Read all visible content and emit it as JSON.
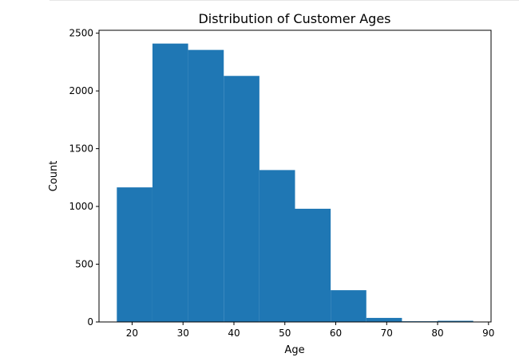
{
  "chart_data": {
    "type": "bar",
    "title": "Distribution of Customer Ages",
    "xlabel": "Age",
    "ylabel": "Count",
    "xlim": [
      13.5,
      90.5
    ],
    "ylim": [
      0,
      2525
    ],
    "xticks": [
      20,
      30,
      40,
      50,
      60,
      70,
      80,
      90
    ],
    "yticks": [
      0,
      500,
      1000,
      1500,
      2000,
      2500
    ],
    "bins": [
      {
        "start": 17.0,
        "end": 24.0,
        "count": 1165
      },
      {
        "start": 24.0,
        "end": 31.0,
        "count": 2410
      },
      {
        "start": 31.0,
        "end": 38.0,
        "count": 2355
      },
      {
        "start": 38.0,
        "end": 45.0,
        "count": 2130
      },
      {
        "start": 45.0,
        "end": 52.0,
        "count": 1315
      },
      {
        "start": 52.0,
        "end": 59.0,
        "count": 980
      },
      {
        "start": 59.0,
        "end": 66.0,
        "count": 275
      },
      {
        "start": 66.0,
        "end": 73.0,
        "count": 35
      },
      {
        "start": 73.0,
        "end": 80.0,
        "count": 6
      },
      {
        "start": 80.0,
        "end": 87.0,
        "count": 10
      }
    ],
    "bar_color": "#1f77b4",
    "grid": false,
    "legend": "none"
  }
}
